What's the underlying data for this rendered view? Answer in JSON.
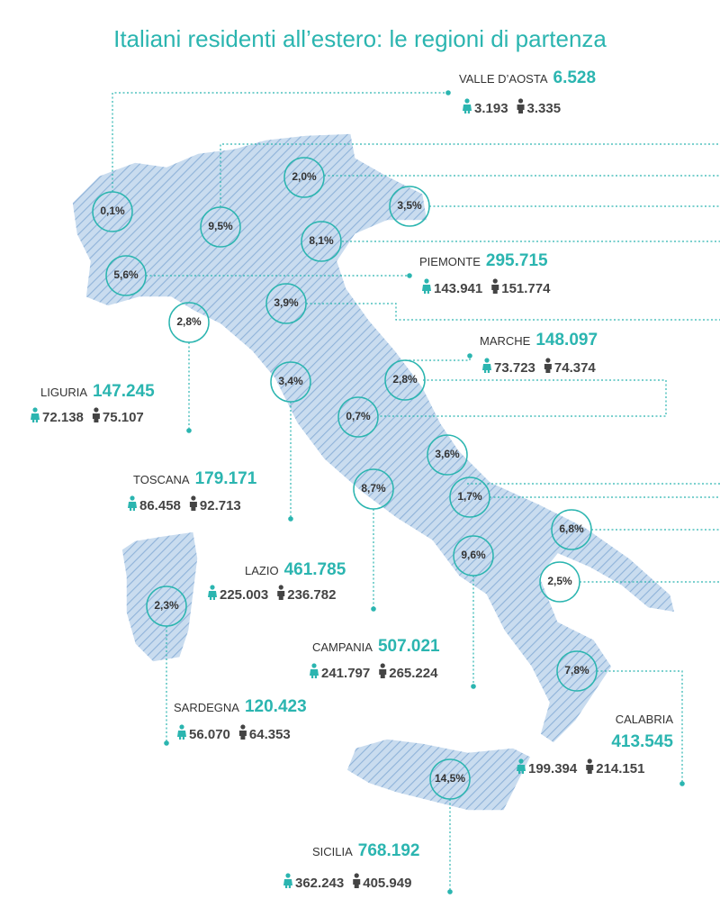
{
  "title": "Italiani residenti all’estero: le regioni di partenza",
  "map_labels": [
    "0,1%",
    "2,0%",
    "9,5%",
    "3,5%",
    "8,1%",
    "5,6%",
    "3,9%",
    "2,8%",
    "3,4%",
    "2,8%",
    "0,7%",
    "3,6%",
    "8,7%",
    "1,7%",
    "6,8%",
    "9,6%",
    "2,5%",
    "2,3%",
    "7,8%",
    "14,5%"
  ],
  "regions": [
    {
      "name": "VALLE D’AOSTA",
      "total": "6.528",
      "female": "3.193",
      "male": "3.335"
    },
    {
      "name": "PIEMONTE",
      "total": "295.715",
      "female": "143.941",
      "male": "151.774"
    },
    {
      "name": "MARCHE",
      "total": "148.097",
      "female": "73.723",
      "male": "74.374"
    },
    {
      "name": "LIGURIA",
      "total": "147.245",
      "female": "72.138",
      "male": "75.107"
    },
    {
      "name": "TOSCANA",
      "total": "179.171",
      "female": "86.458",
      "male": "92.713"
    },
    {
      "name": "LAZIO",
      "total": "461.785",
      "female": "225.003",
      "male": "236.782"
    },
    {
      "name": "CAMPANIA",
      "total": "507.021",
      "female": "241.797",
      "male": "265.224"
    },
    {
      "name": "SARDEGNA",
      "total": "120.423",
      "female": "56.070",
      "male": "64.353"
    },
    {
      "name": "CALABRIA",
      "total": "413.545",
      "female": "199.394",
      "male": "214.151"
    },
    {
      "name": "SICILIA",
      "total": "768.192",
      "female": "362.243",
      "male": "405.949"
    }
  ]
}
